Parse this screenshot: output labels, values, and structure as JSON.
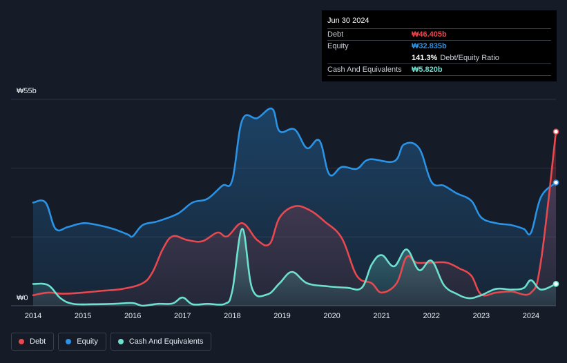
{
  "tooltip": {
    "date": "Jun 30 2024",
    "debt_label": "Debt",
    "debt_value": "₩46.405b",
    "equity_label": "Equity",
    "equity_value": "₩32.835b",
    "ratio_value": "141.3%",
    "ratio_label": "Debt/Equity Ratio",
    "cash_label": "Cash And Equivalents",
    "cash_value": "₩5.820b"
  },
  "legend": {
    "debt": "Debt",
    "equity": "Equity",
    "cash": "Cash And Equivalents"
  },
  "colors": {
    "debt": "#e8484f",
    "equity": "#2b93e6",
    "cash": "#6ee0cf",
    "background": "#151c28"
  },
  "chart_data": {
    "type": "area",
    "x_range": [
      2014.0,
      2024.5
    ],
    "ylim": [
      0,
      55
    ],
    "y_axis_labels": [
      "₩55b",
      "₩0"
    ],
    "x_tick_labels": [
      "2014",
      "2015",
      "2016",
      "2017",
      "2018",
      "2019",
      "2020",
      "2021",
      "2022",
      "2023",
      "2024"
    ],
    "series": [
      {
        "name": "Equity",
        "points": [
          [
            2014.0,
            27.5
          ],
          [
            2014.25,
            27.5
          ],
          [
            2014.45,
            20.5
          ],
          [
            2014.7,
            21
          ],
          [
            2015.0,
            22
          ],
          [
            2015.3,
            21.5
          ],
          [
            2015.6,
            20.5
          ],
          [
            2015.9,
            19
          ],
          [
            2016.0,
            18.5
          ],
          [
            2016.2,
            21.5
          ],
          [
            2016.5,
            22.5
          ],
          [
            2016.9,
            24.5
          ],
          [
            2017.2,
            27.5
          ],
          [
            2017.5,
            28.5
          ],
          [
            2017.8,
            32
          ],
          [
            2018.0,
            33.5
          ],
          [
            2018.2,
            49.5
          ],
          [
            2018.5,
            50
          ],
          [
            2018.8,
            52.5
          ],
          [
            2018.95,
            46.5
          ],
          [
            2019.25,
            47
          ],
          [
            2019.5,
            42
          ],
          [
            2019.75,
            44
          ],
          [
            2019.95,
            35
          ],
          [
            2020.2,
            37
          ],
          [
            2020.5,
            36.5
          ],
          [
            2020.75,
            39
          ],
          [
            2021.25,
            38.5
          ],
          [
            2021.45,
            43
          ],
          [
            2021.75,
            42
          ],
          [
            2022.0,
            33
          ],
          [
            2022.25,
            32
          ],
          [
            2022.5,
            30
          ],
          [
            2022.8,
            28
          ],
          [
            2023.0,
            23.5
          ],
          [
            2023.3,
            22
          ],
          [
            2023.6,
            21.5
          ],
          [
            2023.85,
            20.5
          ],
          [
            2024.0,
            19.5
          ],
          [
            2024.2,
            29
          ],
          [
            2024.5,
            32.835
          ]
        ]
      },
      {
        "name": "Debt",
        "points": [
          [
            2014.0,
            2.8
          ],
          [
            2014.3,
            3.5
          ],
          [
            2014.6,
            3.2
          ],
          [
            2015.0,
            3.5
          ],
          [
            2015.4,
            4
          ],
          [
            2015.8,
            4.5
          ],
          [
            2016.2,
            6
          ],
          [
            2016.4,
            9
          ],
          [
            2016.6,
            15
          ],
          [
            2016.8,
            18.5
          ],
          [
            2017.1,
            17.5
          ],
          [
            2017.4,
            17.2
          ],
          [
            2017.7,
            19.5
          ],
          [
            2017.9,
            18.5
          ],
          [
            2018.2,
            22
          ],
          [
            2018.5,
            17.5
          ],
          [
            2018.75,
            16.5
          ],
          [
            2018.95,
            23.5
          ],
          [
            2019.25,
            26.5
          ],
          [
            2019.55,
            25.5
          ],
          [
            2019.85,
            22.5
          ],
          [
            2020.2,
            18
          ],
          [
            2020.5,
            8
          ],
          [
            2020.8,
            6
          ],
          [
            2021.0,
            3.5
          ],
          [
            2021.3,
            6
          ],
          [
            2021.5,
            13
          ],
          [
            2021.7,
            11.5
          ],
          [
            2022.0,
            11.5
          ],
          [
            2022.3,
            11.5
          ],
          [
            2022.55,
            10
          ],
          [
            2022.8,
            8
          ],
          [
            2023.0,
            3
          ],
          [
            2023.3,
            3.5
          ],
          [
            2023.6,
            3.8
          ],
          [
            2024.0,
            3.5
          ],
          [
            2024.2,
            12
          ],
          [
            2024.5,
            46.405
          ]
        ]
      },
      {
        "name": "Cash And Equivalents",
        "points": [
          [
            2014.0,
            5.8
          ],
          [
            2014.3,
            5.5
          ],
          [
            2014.55,
            2
          ],
          [
            2014.8,
            0.5
          ],
          [
            2015.2,
            0.4
          ],
          [
            2015.6,
            0.5
          ],
          [
            2016.0,
            0.7
          ],
          [
            2016.2,
            0
          ],
          [
            2016.5,
            0.5
          ],
          [
            2016.8,
            0.6
          ],
          [
            2017.0,
            2.2
          ],
          [
            2017.2,
            0.4
          ],
          [
            2017.5,
            0.5
          ],
          [
            2017.85,
            0.5
          ],
          [
            2018.0,
            4
          ],
          [
            2018.2,
            20.5
          ],
          [
            2018.4,
            4.5
          ],
          [
            2018.7,
            3
          ],
          [
            2018.95,
            6
          ],
          [
            2019.2,
            9
          ],
          [
            2019.5,
            6
          ],
          [
            2019.9,
            5.2
          ],
          [
            2020.3,
            4.8
          ],
          [
            2020.6,
            4.8
          ],
          [
            2020.8,
            11
          ],
          [
            2021.0,
            13.5
          ],
          [
            2021.25,
            10.5
          ],
          [
            2021.5,
            15
          ],
          [
            2021.75,
            9.5
          ],
          [
            2022.0,
            12
          ],
          [
            2022.25,
            5.5
          ],
          [
            2022.5,
            3.2
          ],
          [
            2022.75,
            2
          ],
          [
            2023.0,
            2.8
          ],
          [
            2023.3,
            4.5
          ],
          [
            2023.6,
            4.3
          ],
          [
            2023.85,
            4.7
          ],
          [
            2024.0,
            6.8
          ],
          [
            2024.2,
            4.3
          ],
          [
            2024.5,
            5.82
          ]
        ]
      }
    ]
  }
}
